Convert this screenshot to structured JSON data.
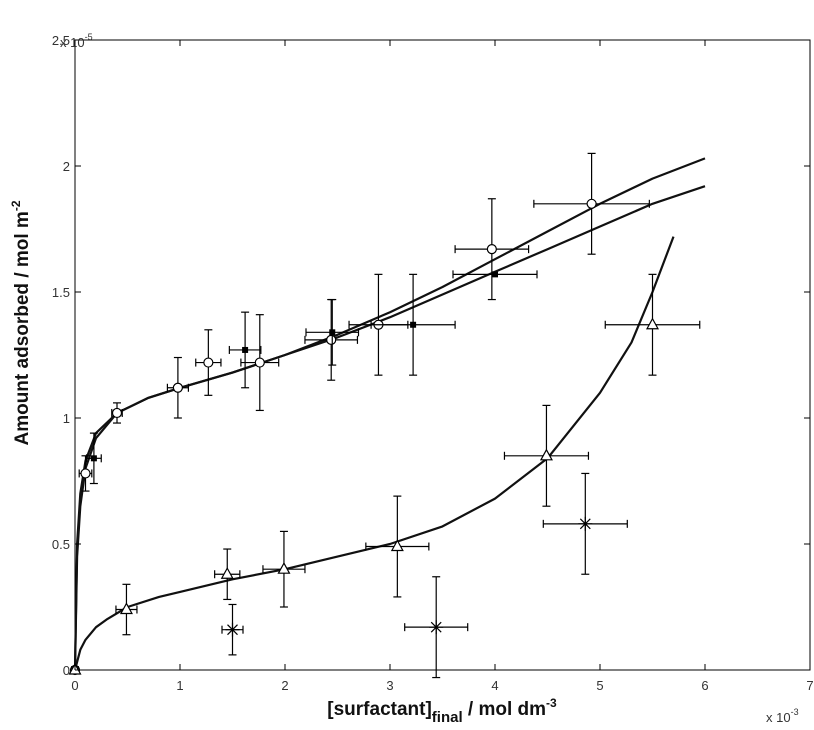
{
  "chart_data": {
    "type": "scatter",
    "title": "",
    "xlabel_main": "[surfactant]",
    "xlabel_sub": "final",
    "xlabel_rest": " / mol dm",
    "xlabel_sup": "-3",
    "ylabel_main": "Amount adsorbed / mol m",
    "ylabel_sup": "-2",
    "x_multiplier": "x 10",
    "x_multiplier_exp": "-3",
    "y_multiplier": "x 10",
    "y_multiplier_exp": "-5",
    "xlim": [
      0,
      7
    ],
    "ylim": [
      0,
      2.5
    ],
    "xticks": [
      "0",
      "1",
      "2",
      "3",
      "4",
      "5",
      "6",
      "7"
    ],
    "yticks": [
      "0",
      "0.5",
      "1",
      "1.5",
      "2",
      "2.5"
    ],
    "grid": false,
    "series": [
      {
        "marker": "circle",
        "points": [
          {
            "x": 0.0,
            "y": 0.0,
            "xerr": 0.03,
            "yerr": 0.0
          },
          {
            "x": 0.1,
            "y": 0.78,
            "xerr": 0.06,
            "yerr": 0.07
          },
          {
            "x": 0.4,
            "y": 1.02,
            "xerr": 0.05,
            "yerr": 0.04
          },
          {
            "x": 0.98,
            "y": 1.12,
            "xerr": 0.1,
            "yerr": 0.12
          },
          {
            "x": 1.27,
            "y": 1.22,
            "xerr": 0.12,
            "yerr": 0.13
          },
          {
            "x": 1.76,
            "y": 1.22,
            "xerr": 0.18,
            "yerr": 0.19
          },
          {
            "x": 2.44,
            "y": 1.31,
            "xerr": 0.25,
            "yerr": 0.16
          },
          {
            "x": 2.89,
            "y": 1.37,
            "xerr": 0.28,
            "yerr": 0.2
          },
          {
            "x": 3.97,
            "y": 1.67,
            "xerr": 0.35,
            "yerr": 0.2
          },
          {
            "x": 4.92,
            "y": 1.85,
            "xerr": 0.55,
            "yerr": 0.2
          }
        ]
      },
      {
        "marker": "filled-square",
        "points": [
          {
            "x": 0.18,
            "y": 0.84,
            "xerr": 0.07,
            "yerr": 0.1
          },
          {
            "x": 1.62,
            "y": 1.27,
            "xerr": 0.15,
            "yerr": 0.15
          },
          {
            "x": 2.45,
            "y": 1.34,
            "xerr": 0.25,
            "yerr": 0.13
          },
          {
            "x": 3.22,
            "y": 1.37,
            "xerr": 0.4,
            "yerr": 0.2
          },
          {
            "x": 4.0,
            "y": 1.57,
            "xerr": 0.4,
            "yerr": 0.0
          }
        ]
      },
      {
        "marker": "triangle",
        "points": [
          {
            "x": 0.0,
            "y": 0.0,
            "xerr": 0.03,
            "yerr": 0.0
          },
          {
            "x": 0.49,
            "y": 0.24,
            "xerr": 0.1,
            "yerr": 0.1
          },
          {
            "x": 1.45,
            "y": 0.38,
            "xerr": 0.12,
            "yerr": 0.1
          },
          {
            "x": 1.99,
            "y": 0.4,
            "xerr": 0.2,
            "yerr": 0.15
          },
          {
            "x": 3.07,
            "y": 0.49,
            "xerr": 0.3,
            "yerr": 0.2
          },
          {
            "x": 4.49,
            "y": 0.85,
            "xerr": 0.4,
            "yerr": 0.2
          },
          {
            "x": 5.5,
            "y": 1.37,
            "xerr": 0.45,
            "yerr": 0.2
          }
        ]
      },
      {
        "marker": "star",
        "points": [
          {
            "x": 1.5,
            "y": 0.16,
            "xerr": 0.1,
            "yerr": 0.1
          },
          {
            "x": 3.44,
            "y": 0.17,
            "xerr": 0.3,
            "yerr": 0.2
          },
          {
            "x": 4.86,
            "y": 0.58,
            "xerr": 0.4,
            "yerr": 0.2
          }
        ]
      }
    ],
    "curves": [
      {
        "x": [
          0.0,
          0.02,
          0.05,
          0.1,
          0.2,
          0.4,
          0.7,
          1.0,
          1.5,
          2.0,
          2.5,
          3.0,
          3.5,
          4.0,
          4.5,
          5.0,
          5.5,
          6.0
        ],
        "y": [
          0.0,
          0.45,
          0.65,
          0.8,
          0.92,
          1.02,
          1.08,
          1.12,
          1.18,
          1.25,
          1.32,
          1.4,
          1.49,
          1.58,
          1.67,
          1.76,
          1.85,
          1.92
        ]
      },
      {
        "x": [
          0.0,
          0.02,
          0.05,
          0.1,
          0.2,
          0.4,
          0.7,
          1.0,
          1.5,
          2.0,
          2.5,
          3.0,
          3.5,
          4.0,
          4.5,
          5.0,
          5.5,
          6.0
        ],
        "y": [
          0.0,
          0.5,
          0.7,
          0.83,
          0.94,
          1.02,
          1.08,
          1.12,
          1.18,
          1.25,
          1.33,
          1.42,
          1.52,
          1.63,
          1.74,
          1.85,
          1.95,
          2.03
        ]
      },
      {
        "x": [
          0.0,
          0.05,
          0.1,
          0.2,
          0.3,
          0.5,
          0.8,
          1.0,
          1.5,
          2.0,
          2.5,
          3.0,
          3.5,
          4.0,
          4.5,
          5.0,
          5.3,
          5.5,
          5.7
        ],
        "y": [
          0.0,
          0.08,
          0.12,
          0.17,
          0.2,
          0.25,
          0.29,
          0.31,
          0.36,
          0.4,
          0.45,
          0.5,
          0.57,
          0.68,
          0.84,
          1.1,
          1.3,
          1.5,
          1.72
        ]
      }
    ]
  }
}
